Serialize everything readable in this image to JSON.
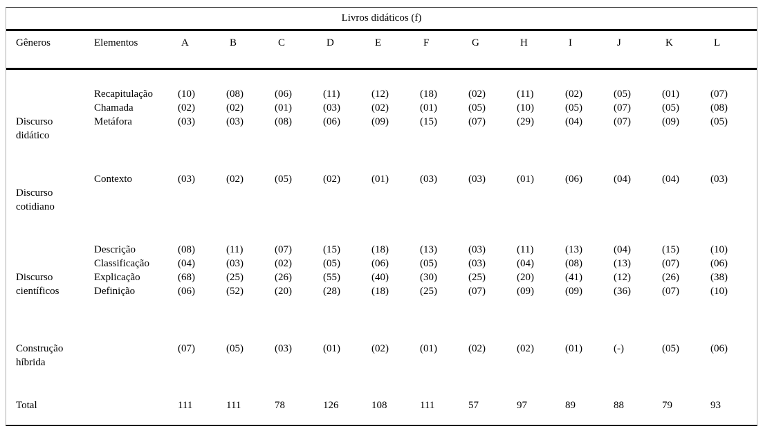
{
  "table": {
    "title": "Livros didáticos (f)",
    "columns": {
      "generos": "Gêneros",
      "elementos": "Elementos",
      "books": [
        "A",
        "B",
        "C",
        "D",
        "E",
        "F",
        "G",
        "H",
        "I",
        "J",
        "K",
        "L"
      ]
    },
    "blocks": [
      {
        "genre_lines": [
          "Discurso",
          "didático"
        ],
        "rows": [
          {
            "element": "Recapitulação",
            "values": [
              "(10)",
              "(08)",
              "(06)",
              "(11)",
              "(12)",
              "(18)",
              "(02)",
              "(11)",
              "(02)",
              "(05)",
              "(01)",
              "(07)"
            ]
          },
          {
            "element": "Chamada",
            "values": [
              "(02)",
              "(02)",
              "(01)",
              "(03)",
              "(02)",
              "(01)",
              "(05)",
              "(10)",
              "(05)",
              "(07)",
              "(05)",
              "(08)"
            ]
          },
          {
            "element": "Metáfora",
            "values": [
              "(03)",
              "(03)",
              "(08)",
              "(06)",
              "(09)",
              "(15)",
              "(07)",
              "(29)",
              "(04)",
              "(07)",
              "(09)",
              "(05)"
            ]
          }
        ]
      },
      {
        "genre_lines": [
          "Discurso",
          "cotidiano"
        ],
        "rows": [
          {
            "element": "Contexto",
            "values": [
              "(03)",
              "(02)",
              "(05)",
              "(02)",
              "(01)",
              "(03)",
              "(03)",
              "(01)",
              "(06)",
              "(04)",
              "(04)",
              "(03)"
            ]
          }
        ]
      },
      {
        "genre_lines": [
          "Discurso",
          "científicos"
        ],
        "rows": [
          {
            "element": "Descrição",
            "values": [
              "(08)",
              "(11)",
              "(07)",
              "(15)",
              "(18)",
              "(13)",
              "(03)",
              "(11)",
              "(13)",
              "(04)",
              "(15)",
              "(10)"
            ]
          },
          {
            "element": "Classificação",
            "values": [
              "(04)",
              "(03)",
              "(02)",
              "(05)",
              "(06)",
              "(05)",
              "(03)",
              "(04)",
              "(08)",
              "(13)",
              "(07)",
              "(06)"
            ]
          },
          {
            "element": "Explicação",
            "values": [
              "(68)",
              "(25)",
              "(26)",
              "(55)",
              "(40)",
              "(30)",
              "(25)",
              "(20)",
              "(41)",
              "(12)",
              "(26)",
              "(38)"
            ]
          },
          {
            "element": "Definição",
            "values": [
              "(06)",
              "(52)",
              "(20)",
              "(28)",
              "(18)",
              "(25)",
              "(07)",
              "(09)",
              "(09)",
              "(36)",
              "(07)",
              "(10)"
            ]
          }
        ]
      },
      {
        "genre_lines": [
          "Construção",
          "híbrida"
        ],
        "rows": [
          {
            "element": "",
            "values": [
              "(07)",
              "(05)",
              "(03)",
              "(01)",
              "(02)",
              "(01)",
              "(02)",
              "(02)",
              "(01)",
              "(-)",
              "(05)",
              "(06)"
            ]
          }
        ]
      }
    ],
    "total": {
      "label": "Total",
      "values": [
        "111",
        "111",
        "78",
        "126",
        "108",
        "111",
        "57",
        "97",
        "89",
        "88",
        "79",
        "93"
      ]
    },
    "colors": {
      "rule": "#000000",
      "side_border": "#adadad",
      "text": "#000000",
      "background": "#ffffff"
    }
  }
}
